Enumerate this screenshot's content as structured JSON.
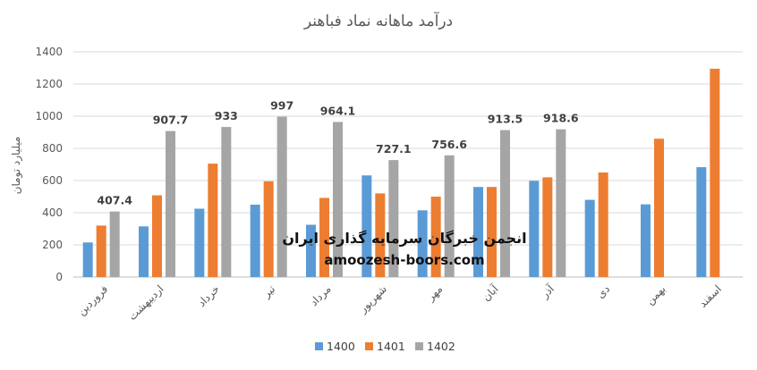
{
  "chart_data": {
    "type": "bar",
    "title": "درآمد ماهانه نماد فباهنر",
    "ylabel": "میلیارد تومان",
    "xlabel": "",
    "ylim": [
      0,
      1400
    ],
    "yticks": [
      0,
      200,
      400,
      600,
      800,
      1000,
      1200,
      1400
    ],
    "grid": true,
    "legend_position": "bottom",
    "categories": [
      "فروردین",
      "اردیبهشت",
      "خرداد",
      "تیر",
      "مرداد",
      "شهریور",
      "مهر",
      "آبان",
      "آذر",
      "دی",
      "بهمن",
      "اسفند"
    ],
    "series": [
      {
        "name": "1400",
        "color": "#5B9BD5",
        "values": [
          215,
          315,
          425,
          450,
          325,
          632,
          415,
          560,
          598,
          480,
          452,
          683
        ]
      },
      {
        "name": "1401",
        "color": "#ED7D31",
        "values": [
          320,
          508,
          705,
          595,
          492,
          520,
          500,
          560,
          620,
          650,
          860,
          1295
        ]
      },
      {
        "name": "1402",
        "color": "#A5A5A5",
        "values": [
          407.4,
          907.7,
          933,
          997,
          964.1,
          727.1,
          756.6,
          913.5,
          918.6,
          null,
          null,
          null
        ],
        "data_labels": [
          "407.4",
          "907.7",
          "933",
          "997",
          "964.1",
          "727.1",
          "756.6",
          "913.5",
          "918.6"
        ]
      }
    ]
  },
  "watermark": {
    "line1": "انجمن خبرگان سرمایه گذاری ایران",
    "line2": "amoozesh-boors.com"
  }
}
